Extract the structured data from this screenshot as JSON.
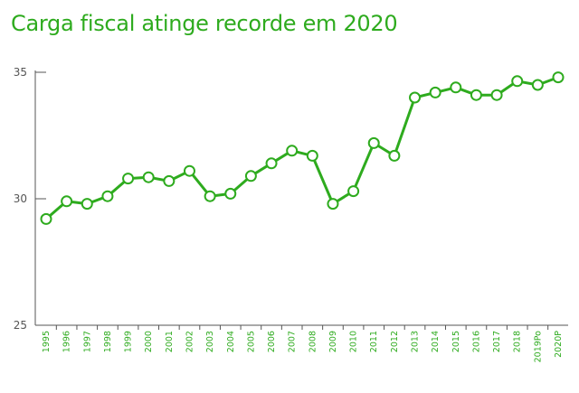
{
  "colors": {
    "accent": "#2eab1e",
    "line": "#2eab1e",
    "axis": "#555555",
    "point_fill": "#ffffff"
  },
  "chart_data": {
    "type": "line",
    "title": "Carga fiscal atinge recorde em 2020",
    "xlabel": "",
    "ylabel": "",
    "ylim": [
      25,
      35
    ],
    "yticks": [
      "25",
      "30",
      "35"
    ],
    "grid": false,
    "categories": [
      "1995",
      "1996",
      "1997",
      "1998",
      "1999",
      "2000",
      "2001",
      "2002",
      "2003",
      "2004",
      "2005",
      "2006",
      "2007",
      "2008",
      "2009",
      "2010",
      "2011",
      "2012",
      "2013",
      "2014",
      "2015",
      "2016",
      "2017",
      "2018",
      "2019Po",
      "2020P"
    ],
    "values": [
      29.2,
      29.9,
      29.8,
      30.1,
      30.8,
      30.85,
      30.7,
      31.1,
      30.1,
      30.2,
      30.9,
      31.4,
      31.9,
      31.7,
      29.8,
      30.3,
      32.2,
      31.7,
      34.0,
      34.2,
      34.4,
      34.1,
      34.1,
      34.65,
      34.5,
      34.8
    ]
  }
}
